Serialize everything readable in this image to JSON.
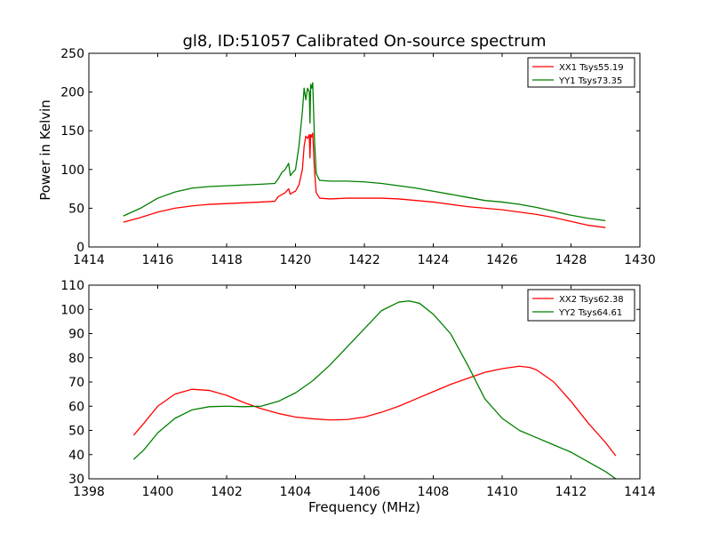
{
  "figure": {
    "title": "gl8, ID:51057 Calibrated On-source spectrum"
  },
  "chart_data": [
    {
      "type": "line",
      "title": "gl8, ID:51057 Calibrated On-source spectrum",
      "xlabel": "",
      "ylabel": "Power in Kelvin",
      "xlim": [
        1414,
        1430
      ],
      "ylim": [
        0,
        250
      ],
      "xticks": [
        "1414",
        "1416",
        "1418",
        "1420",
        "1422",
        "1424",
        "1426",
        "1428",
        "1430"
      ],
      "yticks": [
        "0",
        "50",
        "100",
        "150",
        "200",
        "250"
      ],
      "grid": false,
      "legend_position": "top-right",
      "series": [
        {
          "name": "XX1 Tsys55.19",
          "color": "#ff0000",
          "x": [
            1415.0,
            1415.5,
            1416.0,
            1416.5,
            1417.0,
            1417.5,
            1418.0,
            1418.5,
            1419.0,
            1419.4,
            1419.5,
            1419.7,
            1419.8,
            1419.85,
            1419.9,
            1420.0,
            1420.1,
            1420.2,
            1420.25,
            1420.3,
            1420.35,
            1420.4,
            1420.42,
            1420.44,
            1420.47,
            1420.5,
            1420.55,
            1420.6,
            1420.7,
            1421.0,
            1421.5,
            1422.0,
            1422.5,
            1423.0,
            1423.5,
            1424.0,
            1424.5,
            1425.0,
            1425.5,
            1426.0,
            1426.5,
            1427.0,
            1427.5,
            1428.0,
            1428.5,
            1429.0
          ],
          "values": [
            32,
            38,
            45,
            50,
            53,
            55,
            56,
            57,
            58,
            59,
            65,
            70,
            75,
            68,
            70,
            72,
            80,
            100,
            130,
            143,
            140,
            145,
            115,
            145,
            142,
            147,
            100,
            70,
            63,
            62,
            63,
            63,
            63,
            62,
            60,
            58,
            55,
            52,
            50,
            48,
            45,
            42,
            38,
            33,
            28,
            25
          ]
        },
        {
          "name": "YY1 Tsys73.35",
          "color": "#007f00",
          "x": [
            1415.0,
            1415.5,
            1416.0,
            1416.5,
            1417.0,
            1417.5,
            1418.0,
            1418.5,
            1419.0,
            1419.4,
            1419.5,
            1419.6,
            1419.7,
            1419.8,
            1419.85,
            1419.9,
            1420.0,
            1420.1,
            1420.2,
            1420.25,
            1420.3,
            1420.35,
            1420.4,
            1420.42,
            1420.44,
            1420.47,
            1420.5,
            1420.55,
            1420.6,
            1420.7,
            1421.0,
            1421.5,
            1422.0,
            1422.5,
            1423.0,
            1423.5,
            1424.0,
            1424.5,
            1425.0,
            1425.5,
            1426.0,
            1426.5,
            1427.0,
            1427.5,
            1428.0,
            1428.5,
            1429.0
          ],
          "values": [
            40,
            50,
            63,
            71,
            76,
            78,
            79,
            80,
            81,
            82,
            88,
            96,
            100,
            108,
            92,
            95,
            100,
            130,
            175,
            205,
            190,
            205,
            200,
            160,
            210,
            205,
            212,
            140,
            95,
            86,
            85,
            85,
            84,
            82,
            79,
            76,
            72,
            68,
            64,
            60,
            58,
            55,
            51,
            46,
            41,
            37,
            34
          ]
        }
      ]
    },
    {
      "type": "line",
      "title": "",
      "xlabel": "Frequency (MHz)",
      "ylabel": "",
      "xlim": [
        1398,
        1414
      ],
      "ylim": [
        30,
        110
      ],
      "xticks": [
        "1398",
        "1400",
        "1402",
        "1404",
        "1406",
        "1408",
        "1410",
        "1412",
        "1414"
      ],
      "yticks": [
        "30",
        "40",
        "50",
        "60",
        "70",
        "80",
        "90",
        "100",
        "110"
      ],
      "grid": false,
      "legend_position": "top-right",
      "series": [
        {
          "name": "XX2 Tsys62.38",
          "color": "#ff0000",
          "x": [
            1399.3,
            1399.6,
            1400.0,
            1400.5,
            1401.0,
            1401.5,
            1402.0,
            1402.5,
            1403.0,
            1403.5,
            1404.0,
            1404.5,
            1405.0,
            1405.5,
            1406.0,
            1406.5,
            1407.0,
            1407.5,
            1408.0,
            1408.5,
            1409.0,
            1409.5,
            1410.0,
            1410.5,
            1410.8,
            1411.0,
            1411.5,
            1412.0,
            1412.5,
            1413.0,
            1413.3
          ],
          "values": [
            48,
            53,
            60,
            65,
            67,
            66.5,
            64.5,
            61.5,
            59,
            57,
            55.5,
            54.8,
            54.3,
            54.5,
            55.5,
            57.5,
            60,
            63,
            66,
            69,
            71.5,
            74,
            75.5,
            76.5,
            76,
            75,
            70,
            62,
            53,
            45,
            39.5
          ]
        },
        {
          "name": "YY2 Tsys64.61",
          "color": "#007f00",
          "x": [
            1399.3,
            1399.6,
            1400.0,
            1400.5,
            1401.0,
            1401.5,
            1402.0,
            1402.5,
            1403.0,
            1403.5,
            1404.0,
            1404.5,
            1405.0,
            1405.5,
            1406.0,
            1406.5,
            1407.0,
            1407.3,
            1407.6,
            1408.0,
            1408.5,
            1409.0,
            1409.5,
            1410.0,
            1410.5,
            1411.0,
            1411.5,
            1412.0,
            1412.5,
            1413.0,
            1413.3
          ],
          "values": [
            38,
            42,
            49,
            55,
            58.5,
            59.8,
            60,
            59.8,
            60,
            62,
            65.5,
            70.5,
            77,
            84.5,
            92,
            99.5,
            103,
            103.5,
            102.5,
            98,
            90,
            77,
            63,
            55,
            50,
            47,
            44,
            41,
            37,
            33,
            30
          ]
        }
      ]
    }
  ]
}
